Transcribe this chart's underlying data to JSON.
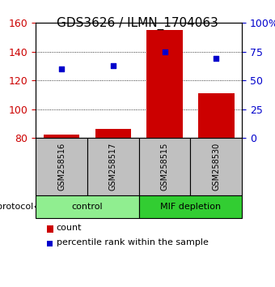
{
  "title": "GDS3626 / ILMN_1704063",
  "samples": [
    "GSM258516",
    "GSM258517",
    "GSM258515",
    "GSM258530"
  ],
  "groups": [
    {
      "name": "control",
      "indices": [
        0,
        1
      ],
      "color": "#90EE90"
    },
    {
      "name": "MIF depletion",
      "indices": [
        2,
        3
      ],
      "color": "#32CD32"
    }
  ],
  "bar_values": [
    82,
    86,
    155,
    111
  ],
  "bar_color": "#CC0000",
  "scatter_values": [
    60,
    63,
    75,
    69
  ],
  "scatter_color": "#0000CC",
  "ylim_left": [
    80,
    160
  ],
  "ylim_right": [
    0,
    100
  ],
  "right_ticks": [
    0,
    25,
    50,
    75,
    100
  ],
  "right_tick_labels": [
    "0",
    "25",
    "50",
    "75",
    "100%"
  ],
  "left_ticks": [
    80,
    100,
    120,
    140,
    160
  ],
  "ylabel_left_color": "#CC0000",
  "ylabel_right_color": "#0000CC",
  "grid_yticks": [
    100,
    120,
    140
  ],
  "protocol_label": "protocol",
  "legend_count_label": "count",
  "legend_pct_label": "percentile rank within the sample",
  "bar_width": 0.7,
  "figsize": [
    3.4,
    3.54
  ],
  "dpi": 100
}
